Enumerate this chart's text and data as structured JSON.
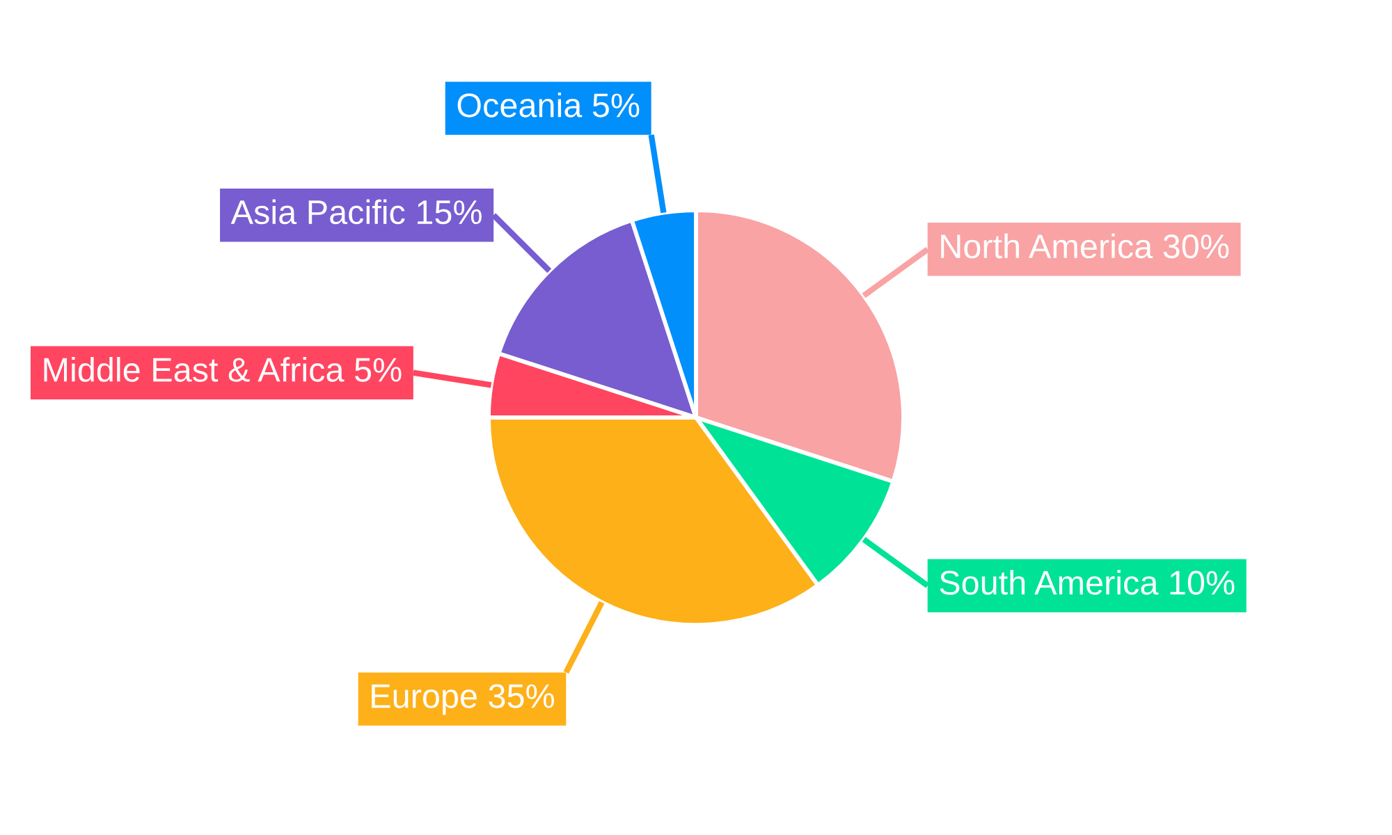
{
  "chart_data": {
    "type": "pie",
    "categories": [
      "North America",
      "South America",
      "Europe",
      "Middle East & Africa",
      "Asia Pacific",
      "Oceania"
    ],
    "values": [
      30,
      10,
      35,
      5,
      15,
      5
    ],
    "value_labels": [
      "30%",
      "10%",
      "35%",
      "5%",
      "15%",
      "5%"
    ],
    "colors": [
      "#f9a3a4",
      "#00e396",
      "#feb019",
      "#ff4560",
      "#775dd0",
      "#008ffb"
    ]
  }
}
